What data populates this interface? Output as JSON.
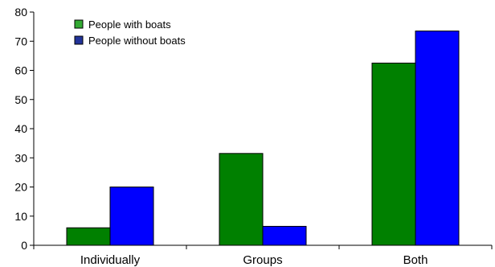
{
  "chart_data": {
    "type": "bar",
    "categories": [
      "Individually",
      "Groups",
      "Both"
    ],
    "series": [
      {
        "name": "People with boats",
        "values": [
          6,
          31.5,
          62.5
        ],
        "color": "#008000"
      },
      {
        "name": "People without boats",
        "values": [
          20,
          6.5,
          73.5
        ],
        "color": "#0000ff"
      }
    ],
    "legend_swatch_colors": [
      "#33aa33",
      "#223399"
    ],
    "ylim": [
      0,
      80
    ],
    "yticks": [
      0,
      10,
      20,
      30,
      40,
      50,
      60,
      70,
      80
    ],
    "grid": false,
    "legend_position": "top-left"
  }
}
